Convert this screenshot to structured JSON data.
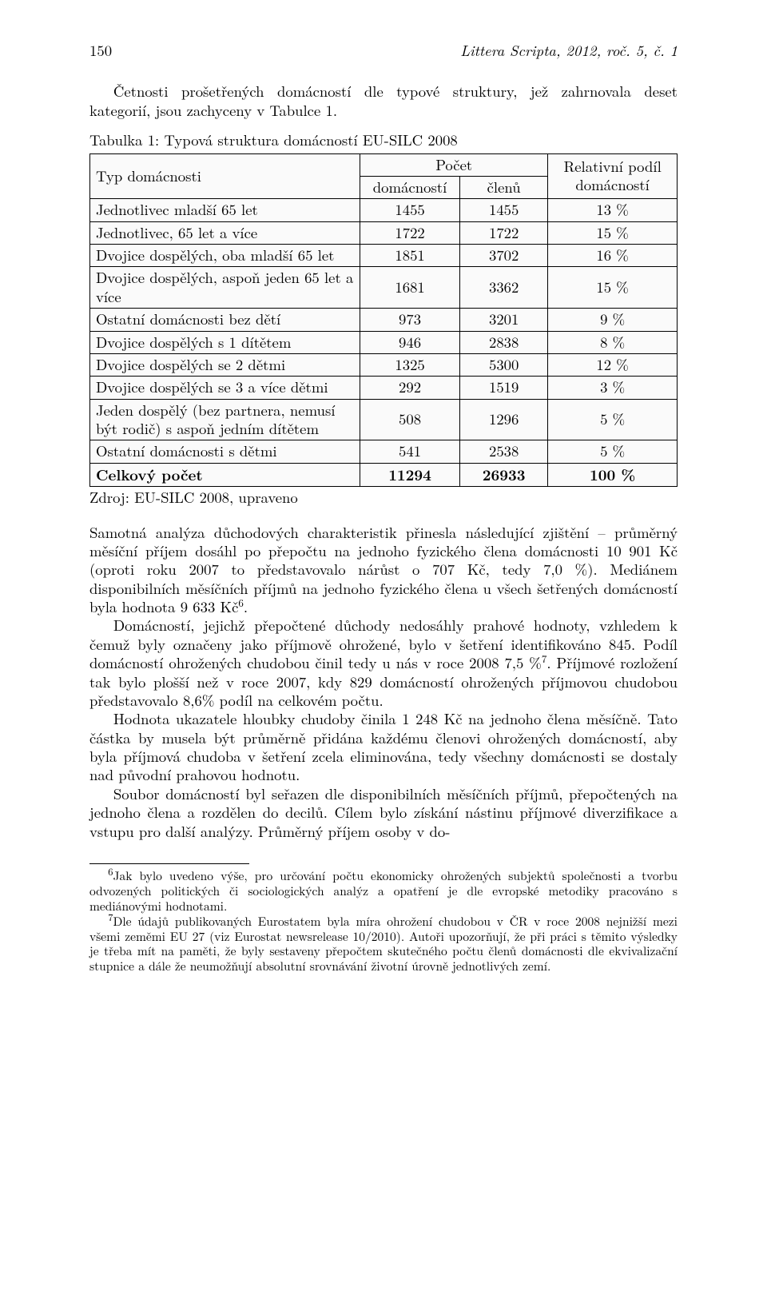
{
  "header": {
    "page": "150",
    "running": "Littera Scripta, 2012, roč. 5, č. 1"
  },
  "intro": "Četnosti prošetřených domácností dle typové struktury, jež zahrnovala deset kategorií, jsou zachyceny v Tabulce 1.",
  "table": {
    "title": "Tabulka 1: Typová struktura domácností EU-SILC 2008",
    "header": {
      "col1": "Typ domácnosti",
      "pocet": "Počet",
      "sub1": "domácností",
      "sub2": "členů",
      "rel": "Relativní podíl domácností"
    },
    "rows": [
      {
        "label": "Jednotlivec mladší 65 let",
        "dom": "1455",
        "cl": "1455",
        "rel": "13 %",
        "bold": false
      },
      {
        "label": "Jednotlivec, 65 let a více",
        "dom": "1722",
        "cl": "1722",
        "rel": "15 %",
        "bold": false
      },
      {
        "label": "Dvojice dospělých, oba mladší 65 let",
        "dom": "1851",
        "cl": "3702",
        "rel": "16 %",
        "bold": false
      },
      {
        "label": "Dvojice dospělých, aspoň jeden 65 let a více",
        "dom": "1681",
        "cl": "3362",
        "rel": "15 %",
        "bold": false
      },
      {
        "label": "Ostatní domácnosti bez dětí",
        "dom": "973",
        "cl": "3201",
        "rel": "9 %",
        "bold": false
      },
      {
        "label": "Dvojice dospělých s 1 dítětem",
        "dom": "946",
        "cl": "2838",
        "rel": "8 %",
        "bold": false
      },
      {
        "label": "Dvojice dospělých se 2 dětmi",
        "dom": "1325",
        "cl": "5300",
        "rel": "12 %",
        "bold": false
      },
      {
        "label": "Dvojice dospělých se 3 a více dětmi",
        "dom": "292",
        "cl": "1519",
        "rel": "3 %",
        "bold": false
      },
      {
        "label": "Jeden dospělý (bez partnera, nemusí být rodič) s aspoň jedním dítětem",
        "dom": "508",
        "cl": "1296",
        "rel": "5 %",
        "bold": false
      },
      {
        "label": "Ostatní domácnosti s dětmi",
        "dom": "541",
        "cl": "2538",
        "rel": "5 %",
        "bold": false
      },
      {
        "label": "Celkový počet",
        "dom": "11294",
        "cl": "26933",
        "rel": "100 %",
        "bold": true
      }
    ],
    "source": "Zdroj: EU-SILC 2008, upraveno",
    "style": {
      "border_color": "#000000",
      "cell_bg": "#fafafa",
      "fontsize_pt": 14,
      "col_widths_pct": [
        46,
        17,
        15,
        22
      ],
      "num_align": "center",
      "label_align": "left"
    }
  },
  "paras": {
    "p1a": "Samotná analýza důchodových charakteristik přinesla následující zjištění – průměrný měsíční příjem dosáhl po přepočtu na jednoho fyzického člena domácnosti 10 901 Kč (oproti roku 2007 to představovalo nárůst o 707 Kč, tedy 7,0 %). Mediánem disponibilních měsíčních příjmů na jednoho fyzického člena u všech šetřených domácností byla hodnota 9 633 Kč",
    "p1b": ".",
    "p2a": "Domácností, jejichž přepočtené důchody nedosáhly prahové hodnoty, vzhledem k čemuž byly označeny jako příjmově ohrožené, bylo v šetření identifikováno 845. Podíl domácností ohrožených chudobou činil tedy u nás v roce 2008 7,5 %",
    "p2b": ". Příjmové rozložení tak bylo plošší než v roce 2007, kdy 829 domácností ohrožených příjmovou chudobou představovalo 8,6% podíl na celkovém počtu.",
    "p3": "Hodnota ukazatele hloubky chudoby činila 1 248 Kč na jednoho člena měsíčně. Tato částka by musela být průměrně přidána každému členovi ohrožených domácností, aby byla příjmová chudoba v šetření zcela eliminována, tedy všechny domácnosti se dostaly nad původní prahovou hodnotu.",
    "p4": "Soubor domácností byl seřazen dle disponibilních měsíčních příjmů, přepočtených na jednoho člena a rozdělen do decilů. Cílem bylo získání nástinu příjmové diverzifikace a vstupu pro další analýzy. Průměrný příjem osoby v do-"
  },
  "fn": {
    "m6": "6",
    "t6": "Jak bylo uvedeno výše, pro určování počtu ekonomicky ohrožených subjektů společnosti a tvorbu odvozených politických či sociologických analýz a opatření je dle evropské metodiky pracováno s mediánovými hodnotami.",
    "m7": "7",
    "t7": "Dle údajů publikovaných Eurostatem byla míra ohrožení chudobou v ČR v roce 2008 nejnižší mezi všemi zeměmi EU 27 (viz Eurostat newsrelease 10/2010). Autoři upozorňují, že při práci s těmito výsledky je třeba mít na paměti, že byly sestaveny přepočtem skutečného počtu členů domácnosti dle ekvivalizační stupnice a dále že neumožňují absolutní srovnávání životní úrovně jednotlivých zemí."
  }
}
